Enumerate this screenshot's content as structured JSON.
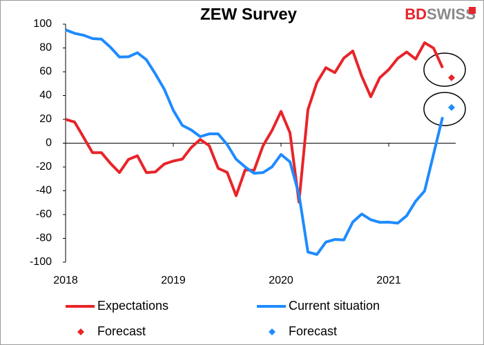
{
  "chart_data": {
    "type": "line",
    "title": "ZEW Survey",
    "brand_prefix": "BD",
    "brand_suffix": "SWISS",
    "categories": [
      "2018",
      null,
      null,
      null,
      null,
      null,
      null,
      null,
      null,
      null,
      null,
      null,
      "2019",
      null,
      null,
      null,
      null,
      null,
      null,
      null,
      null,
      null,
      null,
      null,
      "2020",
      null,
      null,
      null,
      null,
      null,
      null,
      null,
      null,
      null,
      null,
      null,
      "2021",
      null,
      null,
      null,
      null,
      null,
      null,
      null
    ],
    "series": [
      {
        "name": "Expectations",
        "color": "#e8242a",
        "style": "line",
        "values": [
          20,
          17.8,
          5,
          -8,
          -8,
          -17,
          -24.7,
          -13.7,
          -10.6,
          -24.7,
          -24.1,
          -17.5,
          -15,
          -13.4,
          -3.6,
          3.1,
          -2.1,
          -21.1,
          -24.5,
          -44.1,
          -22.5,
          -22.8,
          -2.1,
          10.7,
          26.7,
          8.7,
          -49.5,
          28.2,
          51,
          63.4,
          59.3,
          71.5,
          77.4,
          56.1,
          39,
          55,
          61.8,
          71.2,
          76.6,
          70.7,
          84.4,
          79.8,
          63.3,
          null
        ]
      },
      {
        "name": "Current situation",
        "color": "#1e8bff",
        "style": "line",
        "values": [
          95.2,
          92.3,
          90.7,
          87.9,
          87.4,
          80.6,
          72.4,
          72.6,
          76,
          70.1,
          58.2,
          45.3,
          27.6,
          15,
          11.1,
          5.5,
          7.8,
          7.8,
          -1.1,
          -13.5,
          -19.9,
          -25.3,
          -24.7,
          -19.9,
          -9.5,
          -15.7,
          -43.1,
          -91.5,
          -93.5,
          -83.1,
          -80.9,
          -81.3,
          -66.2,
          -59.5,
          -64.3,
          -66.5,
          -66.4,
          -67.2,
          -61,
          -48.8,
          -40.1,
          -9.1,
          21.9,
          null
        ]
      },
      {
        "name": "Forecast",
        "color": "#e8242a",
        "style": "marker",
        "values": [
          null,
          null,
          null,
          null,
          null,
          null,
          null,
          null,
          null,
          null,
          null,
          null,
          null,
          null,
          null,
          null,
          null,
          null,
          null,
          null,
          null,
          null,
          null,
          null,
          null,
          null,
          null,
          null,
          null,
          null,
          null,
          null,
          null,
          null,
          null,
          null,
          null,
          null,
          null,
          null,
          null,
          null,
          null,
          55
        ]
      },
      {
        "name": "Forecast",
        "color": "#1e8bff",
        "style": "marker",
        "values": [
          null,
          null,
          null,
          null,
          null,
          null,
          null,
          null,
          null,
          null,
          null,
          null,
          null,
          null,
          null,
          null,
          null,
          null,
          null,
          null,
          null,
          null,
          null,
          null,
          null,
          null,
          null,
          null,
          null,
          null,
          null,
          null,
          null,
          null,
          null,
          null,
          null,
          null,
          null,
          null,
          null,
          null,
          null,
          30
        ]
      }
    ],
    "ylim": [
      -100,
      100
    ],
    "yticks": [
      -100,
      -80,
      -60,
      -40,
      -20,
      0,
      20,
      40,
      60,
      80,
      100
    ],
    "grid": false
  }
}
